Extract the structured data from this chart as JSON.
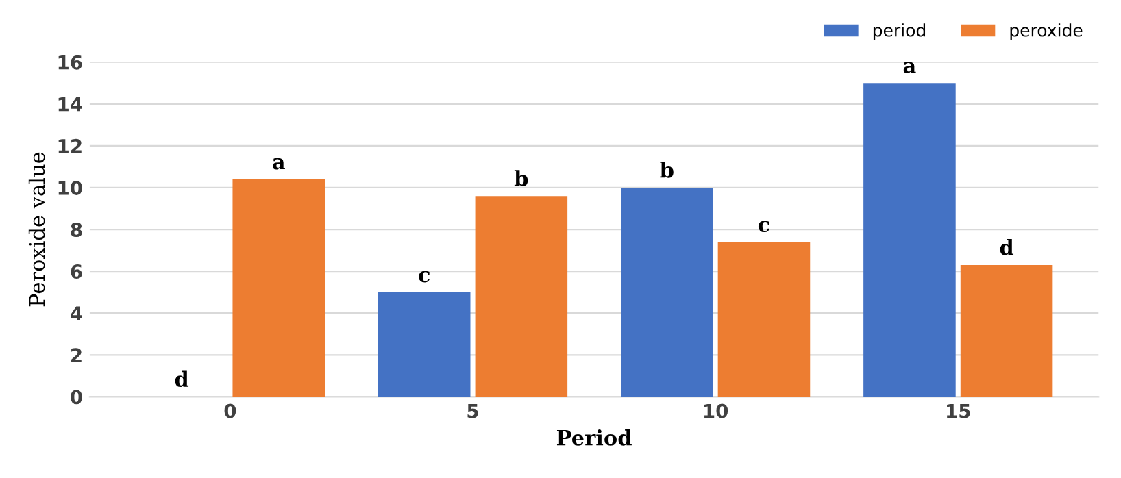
{
  "chart_data": {
    "type": "bar",
    "xlabel": "Period",
    "ylabel": "Peroxide value",
    "categories": [
      "0",
      "5",
      "10",
      "15"
    ],
    "series": [
      {
        "name": "period",
        "color": "#4472c4",
        "values": [
          0,
          5,
          10,
          15
        ]
      },
      {
        "name": "peroxide",
        "color": "#ed7d31",
        "values": [
          10.4,
          9.6,
          7.4,
          6.3
        ]
      }
    ],
    "ylim": [
      0,
      16
    ],
    "yticks": [
      0,
      2,
      4,
      6,
      8,
      10,
      12,
      14,
      16
    ],
    "grid": "y",
    "legend": "top right",
    "annotations": [
      {
        "text": "d",
        "x": "0",
        "y": 0
      },
      {
        "text": "a",
        "x": "0",
        "y": 10.4
      },
      {
        "text": "c",
        "x": "5",
        "y": 5
      },
      {
        "text": "b",
        "x": "5",
        "y": 9.6
      },
      {
        "text": "b",
        "x": "10",
        "y": 10
      },
      {
        "text": "c",
        "x": "10",
        "y": 7.4
      },
      {
        "text": "a",
        "x": "15",
        "y": 15
      },
      {
        "text": "d",
        "x": "15",
        "y": 6.3
      }
    ]
  }
}
